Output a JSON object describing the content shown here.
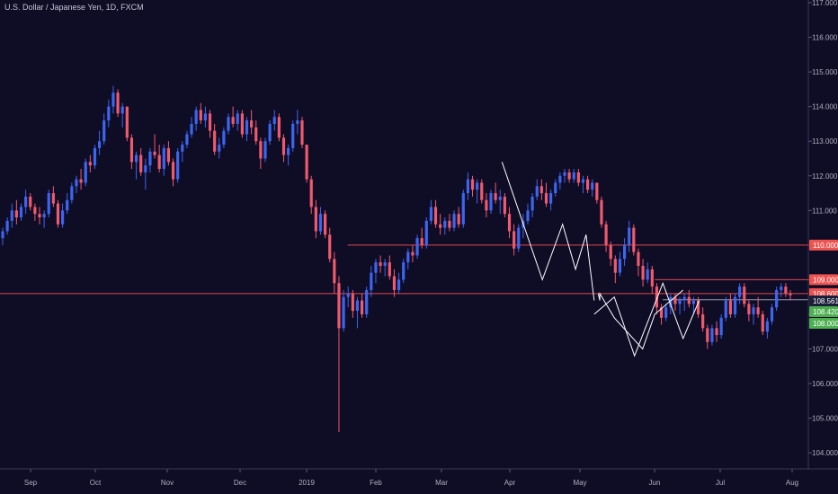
{
  "title": "U.S. Dollar / Japanese Yen, 1D, FXCM",
  "colors": {
    "background": "#0f0c26",
    "up": "#3c66f0",
    "down": "#ef5a6c",
    "drawing": "#ffffff",
    "hline": "#e0484e",
    "badge_red": "#ef5350",
    "badge_green": "#4caf50",
    "badge_dark": "#1b1f3a"
  },
  "chart_data": {
    "type": "candlestick",
    "x_ticks": [
      "Sep",
      "Oct",
      "Nov",
      "Dec",
      "2019",
      "Feb",
      "Mar",
      "Apr",
      "May",
      "Jun",
      "Jul",
      "Aug"
    ],
    "y_ticks": [
      "117.000",
      "116.000",
      "115.000",
      "114.000",
      "113.000",
      "112.000",
      "111.000",
      "110.000",
      "109.000",
      "108.000",
      "107.000",
      "106.000",
      "105.000",
      "104.000"
    ],
    "ylim": [
      103.5,
      117.0
    ],
    "price_badges": [
      {
        "label": "110.000",
        "value": 110.0,
        "style": "red"
      },
      {
        "label": "109.000",
        "value": 109.0,
        "style": "red"
      },
      {
        "label": "108.600",
        "value": 108.6,
        "style": "red"
      },
      {
        "label": "108.561",
        "value": 108.561,
        "style": "dark"
      },
      {
        "label": "108.420",
        "value": 108.42,
        "style": "green"
      },
      {
        "label": "108.000",
        "value": 108.0,
        "style": "green"
      }
    ],
    "horizontal_lines": [
      {
        "value": 110.0,
        "from": 0.43
      },
      {
        "value": 109.0,
        "from": 0.81
      },
      {
        "value": 108.6,
        "from": 0.0
      },
      {
        "value": 108.42,
        "from": 0.82
      }
    ],
    "candles": [
      [
        110.2,
        110.5,
        110.0,
        110.4
      ],
      [
        110.4,
        110.8,
        110.3,
        110.7
      ],
      [
        110.7,
        111.2,
        110.5,
        111.0
      ],
      [
        111.0,
        111.3,
        110.6,
        110.8
      ],
      [
        110.8,
        111.2,
        110.7,
        111.1
      ],
      [
        111.1,
        111.6,
        110.9,
        111.4
      ],
      [
        111.4,
        111.5,
        111.0,
        111.1
      ],
      [
        111.1,
        111.2,
        110.7,
        110.9
      ],
      [
        110.9,
        111.1,
        110.6,
        110.8
      ],
      [
        110.8,
        111.0,
        110.5,
        110.9
      ],
      [
        110.9,
        111.6,
        110.8,
        111.5
      ],
      [
        111.5,
        111.7,
        111.1,
        111.2
      ],
      [
        111.2,
        111.3,
        110.5,
        110.6
      ],
      [
        110.6,
        111.2,
        110.5,
        111.0
      ],
      [
        111.0,
        111.5,
        110.9,
        111.3
      ],
      [
        111.3,
        111.8,
        111.2,
        111.7
      ],
      [
        111.7,
        112.0,
        111.5,
        111.9
      ],
      [
        111.9,
        112.2,
        111.6,
        111.8
      ],
      [
        111.8,
        112.5,
        111.7,
        112.4
      ],
      [
        112.4,
        112.6,
        112.1,
        112.3
      ],
      [
        112.3,
        112.9,
        112.2,
        112.8
      ],
      [
        112.8,
        113.3,
        112.6,
        113.0
      ],
      [
        113.0,
        113.8,
        112.9,
        113.6
      ],
      [
        113.6,
        114.2,
        113.4,
        114.0
      ],
      [
        114.0,
        114.6,
        113.8,
        114.4
      ],
      [
        114.4,
        114.5,
        113.7,
        113.8
      ],
      [
        113.8,
        114.1,
        113.4,
        114.0
      ],
      [
        114.0,
        114.0,
        113.0,
        113.1
      ],
      [
        113.1,
        113.2,
        112.2,
        112.4
      ],
      [
        112.4,
        112.7,
        111.9,
        112.6
      ],
      [
        112.6,
        112.8,
        112.0,
        112.1
      ],
      [
        112.1,
        112.5,
        111.6,
        112.3
      ],
      [
        112.3,
        112.8,
        112.1,
        112.7
      ],
      [
        112.7,
        113.2,
        112.5,
        112.6
      ],
      [
        112.6,
        112.9,
        112.1,
        112.2
      ],
      [
        112.2,
        112.9,
        112.0,
        112.8
      ],
      [
        112.8,
        113.0,
        112.3,
        112.4
      ],
      [
        112.4,
        112.5,
        111.7,
        111.9
      ],
      [
        111.9,
        112.8,
        111.8,
        112.7
      ],
      [
        112.7,
        113.0,
        112.4,
        112.9
      ],
      [
        112.9,
        113.3,
        112.8,
        113.2
      ],
      [
        113.2,
        113.7,
        113.1,
        113.5
      ],
      [
        113.5,
        114.0,
        113.3,
        113.9
      ],
      [
        113.9,
        114.1,
        113.5,
        113.6
      ],
      [
        113.6,
        114.0,
        113.4,
        113.8
      ],
      [
        113.8,
        113.9,
        113.1,
        113.3
      ],
      [
        113.3,
        113.5,
        112.6,
        112.7
      ],
      [
        112.7,
        113.1,
        112.5,
        112.9
      ],
      [
        112.9,
        113.4,
        112.8,
        113.3
      ],
      [
        113.3,
        113.8,
        113.2,
        113.7
      ],
      [
        113.7,
        114.0,
        113.4,
        113.5
      ],
      [
        113.5,
        113.9,
        113.3,
        113.8
      ],
      [
        113.8,
        113.9,
        113.1,
        113.2
      ],
      [
        113.2,
        113.7,
        113.0,
        113.6
      ],
      [
        113.6,
        113.9,
        113.2,
        113.4
      ],
      [
        113.4,
        113.6,
        112.9,
        113.0
      ],
      [
        113.0,
        113.1,
        112.2,
        112.5
      ],
      [
        112.5,
        113.1,
        112.4,
        113.0
      ],
      [
        113.0,
        113.6,
        112.9,
        113.5
      ],
      [
        113.5,
        113.9,
        113.3,
        113.7
      ],
      [
        113.7,
        113.8,
        113.0,
        113.1
      ],
      [
        113.1,
        113.2,
        112.4,
        112.6
      ],
      [
        112.6,
        112.9,
        112.3,
        112.8
      ],
      [
        112.8,
        113.6,
        112.7,
        113.5
      ],
      [
        113.5,
        113.9,
        113.2,
        113.6
      ],
      [
        113.6,
        113.7,
        112.8,
        112.9
      ],
      [
        112.9,
        112.9,
        111.8,
        111.9
      ],
      [
        111.9,
        112.0,
        110.9,
        111.1
      ],
      [
        111.1,
        111.3,
        110.2,
        110.4
      ],
      [
        110.4,
        111.1,
        110.3,
        110.9
      ],
      [
        110.9,
        111.0,
        110.2,
        110.3
      ],
      [
        110.3,
        110.5,
        109.5,
        109.6
      ],
      [
        109.6,
        109.8,
        108.6,
        108.9
      ],
      [
        108.9,
        109.1,
        104.6,
        107.6
      ],
      [
        107.6,
        108.7,
        107.5,
        108.5
      ],
      [
        108.5,
        108.8,
        108.2,
        108.6
      ],
      [
        108.6,
        108.7,
        107.9,
        108.1
      ],
      [
        108.1,
        108.5,
        107.6,
        108.4
      ],
      [
        108.4,
        108.6,
        107.9,
        108.0
      ],
      [
        108.0,
        108.8,
        107.9,
        108.7
      ],
      [
        108.7,
        109.4,
        108.5,
        109.2
      ],
      [
        109.2,
        109.6,
        108.9,
        109.5
      ],
      [
        109.5,
        109.7,
        109.2,
        109.4
      ],
      [
        109.4,
        109.6,
        109.1,
        109.5
      ],
      [
        109.5,
        109.7,
        109.0,
        109.1
      ],
      [
        109.1,
        109.3,
        108.5,
        108.7
      ],
      [
        108.7,
        109.2,
        108.6,
        109.0
      ],
      [
        109.0,
        109.6,
        108.9,
        109.5
      ],
      [
        109.5,
        109.9,
        109.3,
        109.8
      ],
      [
        109.8,
        110.0,
        109.5,
        109.7
      ],
      [
        109.7,
        110.3,
        109.6,
        110.2
      ],
      [
        110.2,
        110.5,
        109.9,
        110.0
      ],
      [
        110.0,
        110.8,
        109.9,
        110.7
      ],
      [
        110.7,
        111.3,
        110.6,
        111.1
      ],
      [
        111.1,
        111.3,
        110.5,
        110.6
      ],
      [
        110.6,
        110.9,
        110.3,
        110.5
      ],
      [
        110.5,
        110.8,
        110.3,
        110.7
      ],
      [
        110.7,
        110.9,
        110.4,
        110.5
      ],
      [
        110.5,
        111.0,
        110.4,
        110.9
      ],
      [
        110.9,
        111.1,
        110.5,
        110.6
      ],
      [
        110.6,
        111.6,
        110.5,
        111.5
      ],
      [
        111.5,
        112.1,
        111.3,
        111.9
      ],
      [
        111.9,
        112.0,
        111.4,
        111.6
      ],
      [
        111.6,
        111.9,
        111.2,
        111.8
      ],
      [
        111.8,
        111.9,
        111.2,
        111.3
      ],
      [
        111.3,
        111.5,
        110.8,
        111.0
      ],
      [
        111.0,
        111.6,
        110.9,
        111.5
      ],
      [
        111.5,
        111.8,
        111.2,
        111.3
      ],
      [
        111.3,
        111.6,
        110.9,
        111.4
      ],
      [
        111.4,
        111.5,
        110.8,
        110.9
      ],
      [
        110.9,
        111.1,
        110.2,
        110.4
      ],
      [
        110.4,
        110.6,
        109.7,
        109.9
      ],
      [
        109.9,
        110.6,
        109.8,
        110.5
      ],
      [
        110.5,
        110.9,
        110.2,
        110.7
      ],
      [
        110.7,
        111.2,
        110.6,
        111.0
      ],
      [
        111.0,
        111.5,
        110.8,
        111.4
      ],
      [
        111.4,
        111.9,
        111.3,
        111.7
      ],
      [
        111.7,
        111.9,
        111.3,
        111.5
      ],
      [
        111.5,
        111.8,
        111.1,
        111.2
      ],
      [
        111.2,
        111.6,
        111.0,
        111.5
      ],
      [
        111.5,
        111.9,
        111.4,
        111.8
      ],
      [
        111.8,
        112.1,
        111.6,
        112.0
      ],
      [
        112.0,
        112.2,
        111.8,
        112.1
      ],
      [
        112.1,
        112.2,
        111.8,
        111.9
      ],
      [
        111.9,
        112.2,
        111.8,
        112.1
      ],
      [
        112.1,
        112.2,
        111.7,
        111.8
      ],
      [
        111.8,
        112.0,
        111.5,
        111.9
      ],
      [
        111.9,
        112.0,
        111.5,
        111.6
      ],
      [
        111.6,
        111.9,
        111.4,
        111.8
      ],
      [
        111.8,
        111.8,
        111.2,
        111.3
      ],
      [
        111.3,
        111.4,
        110.5,
        110.6
      ],
      [
        110.6,
        110.7,
        109.8,
        110.0
      ],
      [
        110.0,
        110.1,
        109.4,
        109.6
      ],
      [
        109.6,
        109.7,
        108.9,
        109.2
      ],
      [
        109.2,
        109.8,
        109.1,
        109.6
      ],
      [
        109.6,
        110.2,
        109.4,
        110.0
      ],
      [
        110.0,
        110.7,
        109.8,
        110.5
      ],
      [
        110.5,
        110.6,
        109.7,
        109.8
      ],
      [
        109.8,
        109.9,
        109.1,
        109.4
      ],
      [
        109.4,
        109.6,
        108.8,
        109.0
      ],
      [
        109.0,
        109.5,
        108.9,
        109.3
      ],
      [
        109.3,
        109.4,
        108.6,
        108.8
      ],
      [
        108.8,
        108.9,
        108.0,
        108.2
      ],
      [
        108.2,
        108.3,
        107.7,
        107.9
      ],
      [
        107.9,
        108.3,
        107.8,
        108.2
      ],
      [
        108.2,
        108.6,
        108.0,
        108.5
      ],
      [
        108.5,
        108.6,
        108.1,
        108.3
      ],
      [
        108.3,
        108.5,
        108.0,
        108.4
      ],
      [
        108.4,
        108.6,
        108.1,
        108.5
      ],
      [
        108.5,
        108.7,
        108.2,
        108.3
      ],
      [
        108.3,
        108.5,
        108.0,
        108.4
      ],
      [
        108.4,
        108.5,
        107.9,
        108.0
      ],
      [
        108.0,
        108.2,
        107.5,
        107.6
      ],
      [
        107.6,
        107.7,
        107.0,
        107.2
      ],
      [
        107.2,
        107.7,
        107.1,
        107.6
      ],
      [
        107.6,
        107.8,
        107.2,
        107.4
      ],
      [
        107.4,
        108.0,
        107.3,
        107.9
      ],
      [
        107.9,
        108.5,
        107.8,
        108.4
      ],
      [
        108.4,
        108.6,
        107.9,
        108.0
      ],
      [
        108.0,
        108.6,
        107.9,
        108.5
      ],
      [
        108.5,
        108.9,
        108.3,
        108.8
      ],
      [
        108.8,
        108.9,
        108.2,
        108.3
      ],
      [
        108.3,
        108.4,
        107.8,
        108.0
      ],
      [
        108.0,
        108.3,
        107.7,
        108.2
      ],
      [
        108.2,
        108.5,
        107.9,
        108.0
      ],
      [
        108.0,
        108.1,
        107.4,
        107.5
      ],
      [
        107.5,
        107.9,
        107.3,
        107.8
      ],
      [
        107.8,
        108.3,
        107.7,
        108.2
      ],
      [
        108.2,
        108.8,
        108.1,
        108.7
      ],
      [
        108.7,
        108.9,
        108.5,
        108.8
      ],
      [
        108.8,
        108.9,
        108.5,
        108.6
      ],
      [
        108.6,
        108.7,
        108.4,
        108.55
      ]
    ],
    "pattern_lines": [
      [
        [
          0.621,
          112.4
        ],
        [
          0.671,
          109.0
        ],
        [
          0.696,
          110.6
        ],
        [
          0.712,
          109.3
        ],
        [
          0.725,
          110.3
        ],
        [
          0.735,
          108.4
        ]
      ],
      [
        [
          0.74,
          108.6
        ],
        [
          0.742,
          108.4
        ],
        [
          0.742,
          108.6
        ],
        [
          0.76,
          107.9
        ],
        [
          0.795,
          107.0
        ],
        [
          0.81,
          108.0
        ],
        [
          0.845,
          108.7
        ]
      ],
      [
        [
          0.735,
          108.0
        ],
        [
          0.76,
          108.5
        ],
        [
          0.785,
          106.8
        ],
        [
          0.82,
          108.9
        ],
        [
          0.845,
          107.3
        ],
        [
          0.865,
          108.4
        ]
      ]
    ]
  }
}
